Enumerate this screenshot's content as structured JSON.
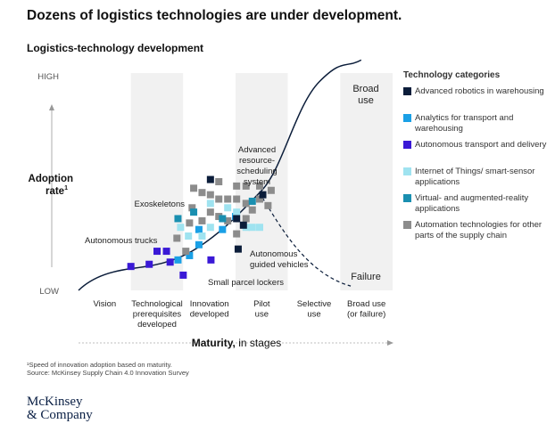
{
  "headline": "Dozens of logistics technologies are under development.",
  "chart_data": {
    "type": "scatter",
    "title": "Logistics-technology development",
    "ylabel": "Adoption rate",
    "ylabel_superscript": "1",
    "ytick_high": "HIGH",
    "ytick_low": "LOW",
    "xlabel_bold": "Maturity,",
    "xlabel_rest": " in stages",
    "stages": [
      [
        "Vision"
      ],
      [
        "Technological",
        "prerequisites",
        "developed"
      ],
      [
        "Innovation",
        "developed"
      ],
      [
        "Pilot",
        "use"
      ],
      [
        "Selective",
        "use"
      ],
      [
        "Broad use",
        "(or failure)"
      ]
    ],
    "curve_labels": {
      "broad_use": [
        "Broad",
        "use"
      ],
      "failure": "Failure"
    },
    "annotations": {
      "exoskeletons": "Exoskeletons",
      "autonomous_trucks": "Autonomous trucks",
      "advanced_resource_scheduling": [
        "Advanced",
        "resource-",
        "scheduling",
        "system"
      ],
      "autonomous_guided_vehicles": [
        "Autonomous",
        "guided vehicles"
      ],
      "small_parcel_lockers": "Small parcel lockers"
    },
    "legend_title": "Technology categories",
    "categories": [
      {
        "key": "robotics",
        "label": "Advanced robotics in warehousing",
        "color": "#0b1d3a"
      },
      {
        "key": "analytics",
        "label": "Analytics for transport and warehousing",
        "color": "#1aa0e6"
      },
      {
        "key": "autonomous",
        "label": "Autonomous transport and delivery",
        "color": "#3a19d6"
      },
      {
        "key": "iot",
        "label": "Internet of Things/ smart-sensor applications",
        "color": "#9fe3f0"
      },
      {
        "key": "vr",
        "label": "Virtual- and augmented-reality applications",
        "color": "#1a8fb0"
      },
      {
        "key": "automation",
        "label": "Automation technologies for other parts of the supply chain",
        "color": "#8c8c8c"
      }
    ],
    "points": [
      {
        "x": 1.0,
        "y": 0.11,
        "cat": "autonomous"
      },
      {
        "x": 1.35,
        "y": 0.12,
        "cat": "autonomous"
      },
      {
        "x": 1.5,
        "y": 0.18,
        "cat": "autonomous"
      },
      {
        "x": 1.68,
        "y": 0.18,
        "cat": "autonomous"
      },
      {
        "x": 1.75,
        "y": 0.13,
        "cat": "autonomous"
      },
      {
        "x": 2.0,
        "y": 0.07,
        "cat": "autonomous"
      },
      {
        "x": 2.53,
        "y": 0.14,
        "cat": "autonomous"
      },
      {
        "x": 1.9,
        "y": 0.14,
        "cat": "analytics"
      },
      {
        "x": 2.12,
        "y": 0.16,
        "cat": "analytics"
      },
      {
        "x": 2.3,
        "y": 0.21,
        "cat": "analytics"
      },
      {
        "x": 2.3,
        "y": 0.28,
        "cat": "analytics"
      },
      {
        "x": 2.75,
        "y": 0.28,
        "cat": "analytics"
      },
      {
        "x": 3.0,
        "y": 0.34,
        "cat": "analytics"
      },
      {
        "x": 1.88,
        "y": 0.24,
        "cat": "automation"
      },
      {
        "x": 2.05,
        "y": 0.18,
        "cat": "automation"
      },
      {
        "x": 2.12,
        "y": 0.31,
        "cat": "automation"
      },
      {
        "x": 2.17,
        "y": 0.38,
        "cat": "automation"
      },
      {
        "x": 2.2,
        "y": 0.47,
        "cat": "automation"
      },
      {
        "x": 2.36,
        "y": 0.32,
        "cat": "automation"
      },
      {
        "x": 2.36,
        "y": 0.45,
        "cat": "automation"
      },
      {
        "x": 2.52,
        "y": 0.36,
        "cat": "automation"
      },
      {
        "x": 2.52,
        "y": 0.44,
        "cat": "automation"
      },
      {
        "x": 2.68,
        "y": 0.34,
        "cat": "automation"
      },
      {
        "x": 2.68,
        "y": 0.42,
        "cat": "automation"
      },
      {
        "x": 2.68,
        "y": 0.5,
        "cat": "automation"
      },
      {
        "x": 2.85,
        "y": 0.32,
        "cat": "automation"
      },
      {
        "x": 2.85,
        "y": 0.42,
        "cat": "automation"
      },
      {
        "x": 3.02,
        "y": 0.26,
        "cat": "automation"
      },
      {
        "x": 3.02,
        "y": 0.42,
        "cat": "automation"
      },
      {
        "x": 3.02,
        "y": 0.48,
        "cat": "automation"
      },
      {
        "x": 3.2,
        "y": 0.33,
        "cat": "automation"
      },
      {
        "x": 3.2,
        "y": 0.4,
        "cat": "automation"
      },
      {
        "x": 3.2,
        "y": 0.48,
        "cat": "automation"
      },
      {
        "x": 3.32,
        "y": 0.37,
        "cat": "automation"
      },
      {
        "x": 3.46,
        "y": 0.42,
        "cat": "automation"
      },
      {
        "x": 3.46,
        "y": 0.48,
        "cat": "automation"
      },
      {
        "x": 3.62,
        "y": 0.39,
        "cat": "automation"
      },
      {
        "x": 3.68,
        "y": 0.46,
        "cat": "automation"
      },
      {
        "x": 1.95,
        "y": 0.29,
        "cat": "iot"
      },
      {
        "x": 2.1,
        "y": 0.25,
        "cat": "iot"
      },
      {
        "x": 2.36,
        "y": 0.25,
        "cat": "iot"
      },
      {
        "x": 2.52,
        "y": 0.29,
        "cat": "iot"
      },
      {
        "x": 2.52,
        "y": 0.4,
        "cat": "iot"
      },
      {
        "x": 2.85,
        "y": 0.38,
        "cat": "iot"
      },
      {
        "x": 3.02,
        "y": 0.36,
        "cat": "iot"
      },
      {
        "x": 3.2,
        "y": 0.29,
        "cat": "iot"
      },
      {
        "x": 3.32,
        "y": 0.29,
        "cat": "iot"
      },
      {
        "x": 3.46,
        "y": 0.29,
        "cat": "iot"
      },
      {
        "x": 1.9,
        "y": 0.33,
        "cat": "vr"
      },
      {
        "x": 2.2,
        "y": 0.36,
        "cat": "vr"
      },
      {
        "x": 2.75,
        "y": 0.33,
        "cat": "vr"
      },
      {
        "x": 3.32,
        "y": 0.41,
        "cat": "vr"
      },
      {
        "x": 2.52,
        "y": 0.51,
        "cat": "robotics"
      },
      {
        "x": 3.02,
        "y": 0.33,
        "cat": "robotics"
      },
      {
        "x": 3.15,
        "y": 0.3,
        "cat": "robotics"
      },
      {
        "x": 3.05,
        "y": 0.19,
        "cat": "robotics"
      },
      {
        "x": 3.52,
        "y": 0.44,
        "cat": "robotics"
      }
    ]
  },
  "footnote": [
    "¹Speed of innovation adoption based on maturity.",
    "Source: McKinsey Supply Chain 4.0 Innovation Survey"
  ],
  "logo": [
    "McKinsey",
    "& Company"
  ]
}
